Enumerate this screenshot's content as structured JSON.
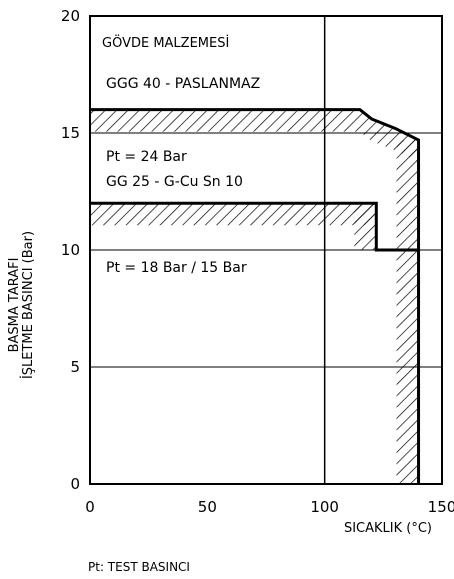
{
  "chart_data": {
    "type": "line",
    "xlabel": "SICAKLIK (°C)",
    "ylabel_line1": "BASMA TARAFI",
    "ylabel_line2": "İŞLETME BASINCI (Bar)",
    "xlim": [
      0,
      150
    ],
    "ylim": [
      0,
      20
    ],
    "xticks": [
      0,
      50,
      100,
      150
    ],
    "yticks": [
      0,
      5,
      10,
      15,
      20
    ],
    "grid_x": [
      100
    ],
    "grid_y": [
      5,
      10,
      15
    ],
    "footnote": "Pt: TEST BASINCI",
    "series": [
      {
        "x": [
          0,
          115,
          120,
          130,
          140,
          140
        ],
        "y": [
          16,
          16,
          15.6,
          15.2,
          14.7,
          0
        ]
      },
      {
        "x": [
          0,
          122,
          122,
          140
        ],
        "y": [
          12,
          12,
          10,
          10
        ]
      }
    ],
    "annotations": {
      "body_material": "GÖVDE MALZEMESİ",
      "upper_material": "GGG 40 - PASLANMAZ",
      "upper_test_pressure": "Pt = 24 Bar",
      "lower_material": "GG 25 - G-Cu Sn 10",
      "lower_test_pressure": "Pt = 18 Bar / 15 Bar"
    }
  }
}
